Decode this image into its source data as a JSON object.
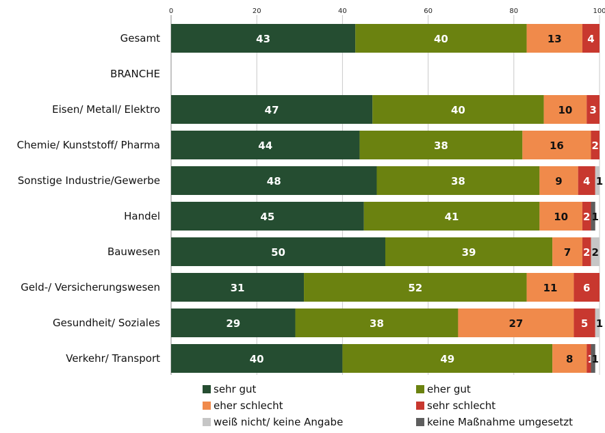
{
  "chart_data": {
    "type": "bar",
    "orientation": "horizontal",
    "stacked": true,
    "xlim": [
      0,
      100
    ],
    "x_ticks": [
      "0",
      "20",
      "40",
      "60",
      "80",
      "100"
    ],
    "grid": true,
    "legend_position": "bottom",
    "categories": [
      "Gesamt",
      "BRANCHE",
      "Eisen/ Metall/ Elektro",
      "Chemie/ Kunststoff/ Pharma",
      "Sonstige Industrie/Gewerbe",
      "Handel",
      "Bauwesen",
      "Geld-/ Versicherungswesen",
      "Gesundheit/ Soziales",
      "Verkehr/ Transport"
    ],
    "series": [
      {
        "name": "sehr gut",
        "color": "#254d31",
        "label_color": "#ffffff",
        "values": [
          43,
          null,
          47,
          44,
          48,
          45,
          50,
          31,
          29,
          40
        ]
      },
      {
        "name": "eher gut",
        "color": "#6b8210",
        "label_color": "#ffffff",
        "values": [
          40,
          null,
          40,
          38,
          38,
          41,
          39,
          52,
          38,
          49
        ]
      },
      {
        "name": "eher schlecht",
        "color": "#f08a4b",
        "label_color": "#111111",
        "values": [
          13,
          null,
          10,
          16,
          9,
          10,
          7,
          11,
          27,
          8
        ]
      },
      {
        "name": "sehr schlecht",
        "color": "#c8382f",
        "label_color": "#ffffff",
        "values": [
          4,
          null,
          3,
          2,
          4,
          2,
          2,
          6,
          5,
          1
        ]
      },
      {
        "name": "weiß nicht/ keine Angabe",
        "color": "#c6c6c6",
        "label_color": "#111111",
        "values": [
          0,
          null,
          0,
          0,
          1,
          0,
          2,
          0,
          1,
          0
        ]
      },
      {
        "name": "keine Maßnahme umgesetzt",
        "color": "#5e5e5e",
        "label_color": "#111111",
        "values": [
          0,
          null,
          0,
          0,
          0,
          1,
          0,
          0,
          0,
          1
        ]
      }
    ]
  }
}
